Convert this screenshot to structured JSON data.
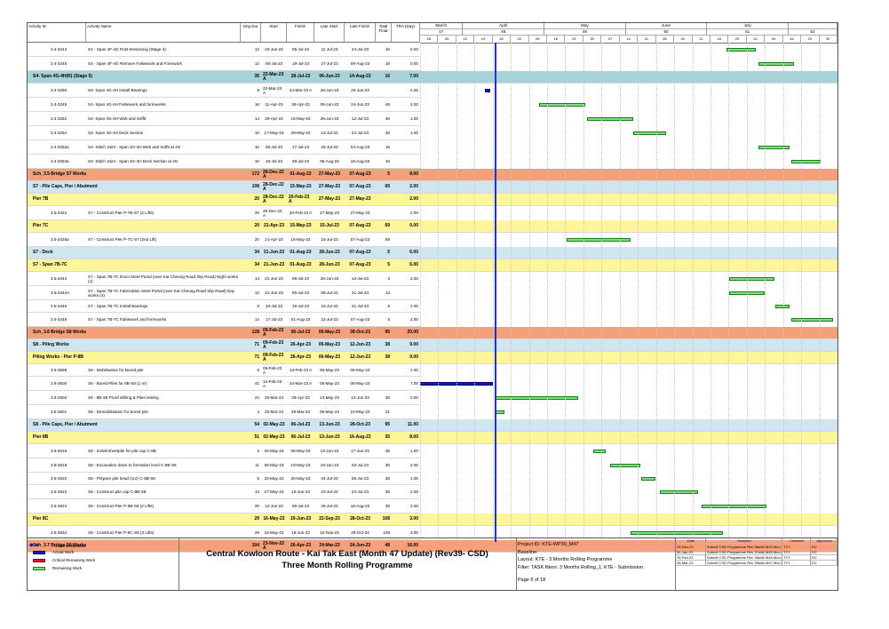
{
  "columns": [
    "Activity ID",
    "Activity Name",
    "Orig Dur",
    "Start",
    "Finish",
    "Late Start",
    "Late Finish",
    "Total Float",
    "TRA (Day)"
  ],
  "timeline": {
    "months": [
      {
        "name": "March",
        "no": "47"
      },
      {
        "name": "April",
        "no": "48"
      },
      {
        "name": "May",
        "no": "49"
      },
      {
        "name": "June",
        "no": "50"
      },
      {
        "name": "July",
        "no": "51"
      },
      {
        "name": "",
        "no": "52"
      }
    ],
    "weeks": [
      "26",
      "05",
      "12",
      "19",
      "26",
      "02",
      "09",
      "16",
      "23",
      "30",
      "07",
      "14",
      "21",
      "28",
      "04",
      "11",
      "18",
      "25",
      "02",
      "09",
      "16",
      "23",
      "30"
    ]
  },
  "rows": [
    {
      "id": "3.4-3244",
      "name": "S4 - Span 4F-4G Post-tensioning (Stage 4)",
      "dur": "12",
      "start": "20-Jun-23",
      "finish": "05-Jul-23",
      "ls": "11-Jul-23",
      "lf": "24-Jul-23",
      "tf": "16",
      "tra": "0.00",
      "type": "act",
      "h": 16,
      "bars": [
        {
          "s": 0.735,
          "w": 0.07,
          "k": "rem"
        }
      ]
    },
    {
      "id": "3.4-3246",
      "name": "S4 - Span 4F-4G Remove Falsework and Formwork",
      "dur": "12",
      "start": "06-Jul-23",
      "finish": "19-Jul-23",
      "ls": "27-Jul-23",
      "lf": "09-Aug-23",
      "tf": "18",
      "tra": "0.00",
      "type": "act",
      "h": 16,
      "bars": [
        {
          "s": 0.81,
          "w": 0.085,
          "k": "rem"
        }
      ]
    },
    {
      "id": "",
      "name": "S4- Span 4G-4H(R) (Stage 5)",
      "dur": "35",
      "start": "22-Mar-23 A",
      "finish": "28-Jul-23",
      "ls": "06-Jun-23",
      "lf": "14-Aug-23",
      "tf": "16",
      "tra": "7.00",
      "type": "grp",
      "color": "#a6d3d8",
      "h": 14,
      "bars": []
    },
    {
      "id": "3.4-3250",
      "name": "S4- Span 4G-4H Install Bearings",
      "dur": "8",
      "start": "22-Mar-23 A",
      "finish": "24-Mar-23 A",
      "ls": "26-Jun-23",
      "lf": "26-Jun-23",
      "tf": "",
      "tra": "2.00",
      "type": "act",
      "h": 16,
      "bars": [
        {
          "s": 0.155,
          "w": 0.014,
          "k": "act"
        }
      ]
    },
    {
      "id": "3.4-3248",
      "name": "S4- Span 4G-4H Falsework and formworks",
      "dur": "16",
      "start": "11-Apr-23",
      "finish": "28-Apr-23",
      "ls": "06-Jun-23",
      "lf": "24-Jun-23",
      "tf": "46",
      "tra": "3.00",
      "type": "act",
      "h": 16,
      "bars": [
        {
          "s": 0.285,
          "w": 0.11,
          "k": "rem"
        }
      ]
    },
    {
      "id": "3.4-3252",
      "name": "S4- Span 4G-4H Web and Soffit",
      "dur": "14",
      "start": "29-Apr-23",
      "finish": "16-May-23",
      "ls": "26-Jun-23",
      "lf": "12-Jul-23",
      "tf": "46",
      "tra": "1.00",
      "type": "act",
      "h": 16,
      "bars": [
        {
          "s": 0.4,
          "w": 0.11,
          "k": "rem"
        }
      ]
    },
    {
      "id": "3.4-3254",
      "name": "S4- Span 4G-4H Deck Section",
      "dur": "10",
      "start": "17-May-23",
      "finish": "29-May-23",
      "ls": "13-Jul-23",
      "lf": "24-Jul-23",
      "tf": "46",
      "tra": "1.00",
      "type": "act",
      "h": 16,
      "bars": [
        {
          "s": 0.51,
          "w": 0.08,
          "k": "rem"
        }
      ]
    },
    {
      "id": "3.4-3252a",
      "name": "S4- Stitch Joint - Span 4G-4H Web and Soffit at 4G",
      "dur": "10",
      "start": "06-Jul-23",
      "finish": "17-Jul-23",
      "ls": "25-Jul-23",
      "lf": "04-Aug-23",
      "tf": "16",
      "tra": "",
      "type": "act",
      "h": 16,
      "bars": [
        {
          "s": 0.81,
          "w": 0.075,
          "k": "rem"
        }
      ]
    },
    {
      "id": "3.4-3254a",
      "name": "S4- Stitch Joint - Span 4G-4H Deck Section at 4G",
      "dur": "10",
      "start": "18-Jul-23",
      "finish": "28-Jul-23",
      "ls": "05-Aug-23",
      "lf": "16-Aug-23",
      "tf": "16",
      "tra": "",
      "type": "act",
      "h": 16,
      "bars": [
        {
          "s": 0.89,
          "w": 0.07,
          "k": "rem"
        }
      ]
    },
    {
      "id": "",
      "name": "Sch_3.5 Bridge S7 Works",
      "dur": "172",
      "start": "28-Dec-22 A",
      "finish": "01-Aug-23",
      "ls": "27-May-23",
      "lf": "07-Aug-23",
      "tf": "5",
      "tra": "8.00",
      "type": "grp",
      "color": "#f4a07a",
      "h": 14,
      "bars": []
    },
    {
      "id": "",
      "name": "S7 - Pile Caps, Pier / Abutment",
      "dur": "108",
      "start": "28-Dec-22 A",
      "finish": "15-May-23",
      "ls": "27-May-23",
      "lf": "07-Aug-23",
      "tf": "69",
      "tra": "2.00",
      "type": "grp",
      "color": "#cfe6ef",
      "h": 14,
      "bars": []
    },
    {
      "id": "",
      "name": "Pier 7B",
      "dur": "20",
      "start": "28-Dec-22 A",
      "finish": "20-Feb-23 A",
      "ls": "27-May-23",
      "lf": "27-May-23",
      "tf": "",
      "tra": "2.00",
      "type": "grp",
      "color": "#fff59a",
      "h": 14,
      "bars": []
    },
    {
      "id": "3.5-3422",
      "name": "S7 - Construct Pier P-7B-S7 (2 Lifts)",
      "dur": "20",
      "start": "28-Dec-22 A",
      "finish": "20-Feb-23 A",
      "ls": "27-May-23",
      "lf": "27-May-23",
      "tf": "",
      "tra": "2.00",
      "type": "act",
      "h": 16,
      "bars": []
    },
    {
      "id": "",
      "name": "Pier 7C",
      "dur": "20",
      "start": "21-Apr-23",
      "finish": "15-May-23",
      "ls": "15-Jul-23",
      "lf": "07-Aug-23",
      "tf": "69",
      "tra": "0.00",
      "type": "grp",
      "color": "#fff59a",
      "h": 14,
      "bars": []
    },
    {
      "id": "3.5-3426a",
      "name": "S7 - Construct Pier P-7C-S7 (2nd Lift)",
      "dur": "20",
      "start": "21-Apr-23",
      "finish": "15-May-23",
      "ls": "15-Jul-23",
      "lf": "07-Aug-23",
      "tf": "69",
      "tra": "",
      "type": "act",
      "h": 16,
      "bars": [
        {
          "s": 0.35,
          "w": 0.155,
          "k": "rem"
        }
      ]
    },
    {
      "id": "",
      "name": "S7 - Deck",
      "dur": "34",
      "start": "21-Jun-23",
      "finish": "01-Aug-23",
      "ls": "28-Jun-23",
      "lf": "07-Aug-23",
      "tf": "5",
      "tra": "6.00",
      "type": "grp",
      "color": "#cfe6ef",
      "h": 14,
      "bars": []
    },
    {
      "id": "",
      "name": "S7 - Span 7B-7C",
      "dur": "34",
      "start": "21-Jun-23",
      "finish": "01-Aug-23",
      "ls": "28-Jun-23",
      "lf": "07-Aug-23",
      "tf": "5",
      "tra": "6.00",
      "type": "grp",
      "color": "#fff59a",
      "h": 14,
      "bars": []
    },
    {
      "id": "3.5-3444",
      "name": "S7 - Span 7B-7C Erect Steel Portal (over Kai Cheung Road Slip Road) Night works (4)",
      "dur": "14",
      "start": "21-Jun-23",
      "finish": "08-Jul-23",
      "ls": "28-Jun-23",
      "lf": "14-Jul-23",
      "tf": "3",
      "tra": "2.00",
      "type": "act",
      "h": 16,
      "bars": [
        {
          "s": 0.74,
          "w": 0.11,
          "k": "rem"
        }
      ]
    },
    {
      "id": "3.5-3444A",
      "name": "S7 - Span 7B-7C Fabrication Steel Portal (over Kai Cheung Road Slip Road) Day works (4)",
      "dur": "12",
      "start": "21-Jun-23",
      "finish": "06-Jul-23",
      "ls": "08-Jul-23",
      "lf": "21-Jul-23",
      "tf": "13",
      "tra": "",
      "type": "act",
      "h": 16,
      "bars": [
        {
          "s": 0.74,
          "w": 0.085,
          "k": "rem"
        }
      ]
    },
    {
      "id": "3.5-3446",
      "name": "S7 - Span 7B-7C Install Bearings",
      "dur": "6",
      "start": "10-Jul-23",
      "finish": "15-Jul-23",
      "ls": "15-Jul-23",
      "lf": "21-Jul-23",
      "tf": "5",
      "tra": "2.00",
      "type": "act",
      "h": 14,
      "bars": [
        {
          "s": 0.85,
          "w": 0.035,
          "k": "rem"
        }
      ]
    },
    {
      "id": "3.5-3448",
      "name": "S7 - Span 7B-7C Falsework and formworks",
      "dur": "14",
      "start": "17-Jul-23",
      "finish": "01-Aug-23",
      "ls": "22-Jul-23",
      "lf": "07-Aug-23",
      "tf": "5",
      "tra": "2.00",
      "type": "act",
      "h": 16,
      "bars": [
        {
          "s": 0.89,
          "w": 0.1,
          "k": "rem"
        }
      ]
    },
    {
      "id": "",
      "name": "Sch_3.6 Bridge S8 Works",
      "dur": "128",
      "start": "09-Feb-23 A",
      "finish": "06-Jul-23",
      "ls": "06-May-23",
      "lf": "28-Oct-23",
      "tf": "95",
      "tra": "20.00",
      "type": "grp",
      "color": "#f4a07a",
      "h": 14,
      "bars": []
    },
    {
      "id": "",
      "name": "S8 - Piling Works",
      "dur": "71",
      "start": "09-Feb-23 A",
      "finish": "26-Apr-23",
      "ls": "06-May-23",
      "lf": "12-Jun-23",
      "tf": "38",
      "tra": "9.00",
      "type": "grp",
      "color": "#cfe6ef",
      "h": 14,
      "bars": []
    },
    {
      "id": "",
      "name": "Piling Works - Pier P-8B",
      "dur": "71",
      "start": "09-Feb-23 A",
      "finish": "26-Apr-23",
      "ls": "06-May-23",
      "lf": "12-Jun-23",
      "tf": "38",
      "tra": "9.00",
      "type": "grp",
      "color": "#fff59a",
      "h": 14,
      "bars": []
    },
    {
      "id": "3.6-3599",
      "name": "S8 - Mobilisation for Bored pile",
      "dur": "6",
      "start": "09-Feb-23 A",
      "finish": "13-Feb-23 A",
      "ls": "06-May-23",
      "lf": "06-May-23",
      "tf": "",
      "tra": "2.00",
      "type": "act",
      "h": 14,
      "bars": []
    },
    {
      "id": "3.6-3600",
      "name": "S8 - Bored Piles for 8B-S8 (1 nr)",
      "dur": "41",
      "start": "14-Feb-23 A",
      "finish": "24-Mar-23 A",
      "ls": "06-May-23",
      "lf": "06-May-23",
      "tf": "",
      "tra": "7.00",
      "type": "act",
      "h": 16,
      "bars": [
        {
          "s": 0.0,
          "w": 0.175,
          "k": "act"
        }
      ]
    },
    {
      "id": "3.6-3602",
      "name": "S8 - 8B-S8 Proof drilling & Piles testing",
      "dur": "24",
      "start": "25-Mar-23",
      "finish": "26-Apr-23",
      "ls": "13-May-23",
      "lf": "12-Jun-23",
      "tf": "38",
      "tra": "0.00",
      "type": "act",
      "h": 16,
      "bars": [
        {
          "s": 0.178,
          "w": 0.2,
          "k": "rem"
        }
      ]
    },
    {
      "id": "3.6-3601",
      "name": "S8 - Demobilisation for bored pile",
      "dur": "4",
      "start": "25-Mar-23",
      "finish": "29-Mar-23",
      "ls": "06-May-23",
      "lf": "10-May-23",
      "tf": "31",
      "tra": "",
      "type": "act",
      "h": 16,
      "bars": [
        {
          "s": 0.178,
          "w": 0.025,
          "k": "rem"
        }
      ]
    },
    {
      "id": "",
      "name": "S8 - Pile Caps, Pier / Abutment",
      "dur": "54",
      "start": "02-May-23",
      "finish": "06-Jul-23",
      "ls": "13-Jun-23",
      "lf": "28-Oct-23",
      "tf": "95",
      "tra": "11.00",
      "type": "grp",
      "color": "#cfe6ef",
      "h": 14,
      "bars": []
    },
    {
      "id": "",
      "name": "Pier 8B",
      "dur": "51",
      "start": "02-May-23",
      "finish": "06-Jul-23",
      "ls": "13-Jun-23",
      "lf": "16-Aug-23",
      "tf": "35",
      "tra": "8.00",
      "type": "grp",
      "color": "#fff59a",
      "h": 14,
      "bars": []
    },
    {
      "id": "3.6-3616",
      "name": "S8 - Install sheetpile for pile cap C-8B",
      "dur": "5",
      "start": "02-May-23",
      "finish": "06-May-23",
      "ls": "13-Jun-23",
      "lf": "17-Jun-23",
      "tf": "35",
      "tra": "1.00",
      "type": "act",
      "h": 16,
      "bars": [
        {
          "s": 0.415,
          "w": 0.03,
          "k": "rem"
        }
      ]
    },
    {
      "id": "3.6-3618",
      "name": "S8 - Excavation down to formation level C-8B-S8",
      "dur": "11",
      "start": "08-May-23",
      "finish": "19-May-23",
      "ls": "19-Jun-23",
      "lf": "03-Jul-23",
      "tf": "35",
      "tra": "2.00",
      "type": "act",
      "h": 16,
      "bars": [
        {
          "s": 0.455,
          "w": 0.072,
          "k": "rem"
        }
      ]
    },
    {
      "id": "3.6-3620",
      "name": "S8 - Prepare pile head (1nr) C-8B-S8",
      "dur": "5",
      "start": "20-May-23",
      "finish": "25-May-23",
      "ls": "04-Jul-23",
      "lf": "08-Jul-23",
      "tf": "35",
      "tra": "1.00",
      "type": "act",
      "h": 14,
      "bars": [
        {
          "s": 0.53,
          "w": 0.034,
          "k": "rem"
        }
      ]
    },
    {
      "id": "3.6-3622",
      "name": "S8 - Construct pile cap C-8B-S8",
      "dur": "13",
      "start": "27-May-23",
      "finish": "10-Jun-23",
      "ls": "10-Jul-23",
      "lf": "24-Jul-23",
      "tf": "35",
      "tra": "2.00",
      "type": "act",
      "h": 16,
      "bars": [
        {
          "s": 0.575,
          "w": 0.09,
          "k": "rem"
        }
      ]
    },
    {
      "id": "3.6-3624",
      "name": "S8 - Construct Pier P-8B-S8 (2 Lifts)",
      "dur": "20",
      "start": "12-Jun-23",
      "finish": "06-Jul-23",
      "ls": "25-Jul-23",
      "lf": "16-Aug-23",
      "tf": "35",
      "tra": "2.00",
      "type": "act",
      "h": 16,
      "bars": [
        {
          "s": 0.675,
          "w": 0.155,
          "k": "rem"
        }
      ]
    },
    {
      "id": "",
      "name": "Pier 8C",
      "dur": "29",
      "start": "16-May-23",
      "finish": "19-Jun-23",
      "ls": "22-Sep-23",
      "lf": "28-Oct-23",
      "tf": "108",
      "tra": "3.00",
      "type": "grp",
      "color": "#fff59a",
      "h": 14,
      "bars": []
    },
    {
      "id": "3.6-3634",
      "name": "S8 - Construct Pier P-8C-S8 (3 Lifts)",
      "dur": "29",
      "start": "16-May-23",
      "finish": "19-Jun-23",
      "ls": "22-Sep-23",
      "lf": "28-Oct-23",
      "tf": "108",
      "tra": "3.00",
      "type": "act",
      "h": 16,
      "bars": [
        {
          "s": 0.505,
          "w": 0.22,
          "k": "rem"
        }
      ]
    },
    {
      "id": "",
      "name": "Sch_3.7 Bridge S9 Works",
      "dur": "104",
      "start": "23-Nov-22 A",
      "finish": "26-Apr-23",
      "ls": "24-Mar-23",
      "lf": "24-Jun-23",
      "tf": "48",
      "tra": "16.00",
      "type": "grp",
      "color": "#f4a07a",
      "h": 14,
      "bars": []
    }
  ],
  "footer": {
    "legend": [
      "Current Milestone",
      "Actual Work",
      "Critical Remaining Work",
      "Remaining Work"
    ],
    "title1": "Central Kowloon Route - Kai Tak East (Month 47 Update) (Rev39- CSD)",
    "title2": "Three Month Rolling Programme",
    "project_id": "Project ID: KTE-WP39_M47",
    "baseline": "Baseline:",
    "layout": "Layout: KTE - 3 Months Rolling Programme",
    "filter": "Filter: TASK filters: 3 Months Rolling_1, KTE - Submission.",
    "page": "Page 6 of 18",
    "rev_headers": [
      "Date",
      "Revision",
      "Checked",
      "Approved"
    ],
    "revisions": [
      [
        "15-Dec-22",
        "Submit CSD Programme Rev 36with M44 Mon..",
        "TYY",
        "DC"
      ],
      [
        "30-Jan-23",
        "Submit CSD Programme Rev 37with M45 Mon..",
        "TYY",
        "DC"
      ],
      [
        "25-Feb-23",
        "Submit CSD Programme Rev 38with M46 Mon..",
        "TYY",
        "DC"
      ],
      [
        "28-Mar-23",
        "Submit CSD Programme Rev 39with M47 Mon..",
        "TYY",
        "DC"
      ]
    ]
  },
  "colors": {
    "remaining": "#7fe07f",
    "actual": "#1a1aa8",
    "critical": "#d91e1e",
    "data_date": "#2233cc"
  }
}
